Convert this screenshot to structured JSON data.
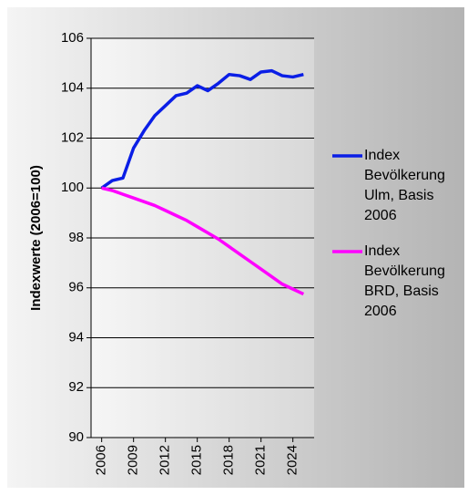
{
  "chart_data": {
    "type": "line",
    "y_label": "Indexwerte (2006=100)",
    "x": [
      2006,
      2007,
      2008,
      2009,
      2010,
      2011,
      2012,
      2013,
      2014,
      2015,
      2016,
      2017,
      2018,
      2019,
      2020,
      2021,
      2022,
      2023,
      2024,
      2025
    ],
    "xlim": [
      2005,
      2026
    ],
    "xticks": [
      2006,
      2009,
      2012,
      2015,
      2018,
      2021,
      2024
    ],
    "ylim": [
      90,
      106
    ],
    "yticks": [
      90,
      92,
      94,
      96,
      98,
      100,
      102,
      104,
      106
    ],
    "grid": true,
    "legend_position": "right",
    "series": [
      {
        "name": "Index Bevölkerung Ulm, Basis 2006",
        "color": "#0a1ee6",
        "values": [
          100,
          100.3,
          100.4,
          101.6,
          102.3,
          102.9,
          103.3,
          103.7,
          103.8,
          104.1,
          103.9,
          104.2,
          104.55,
          104.5,
          104.35,
          104.65,
          104.7,
          104.5,
          104.45,
          104.55
        ]
      },
      {
        "name": "Index Bevölkerung BRD, Basis 2006",
        "color": "#ff00ff",
        "values": [
          100,
          99.9,
          99.75,
          99.6,
          99.45,
          99.3,
          99.1,
          98.9,
          98.7,
          98.45,
          98.2,
          97.95,
          97.65,
          97.35,
          97.05,
          96.75,
          96.45,
          96.15,
          95.95,
          95.75
        ]
      }
    ]
  }
}
